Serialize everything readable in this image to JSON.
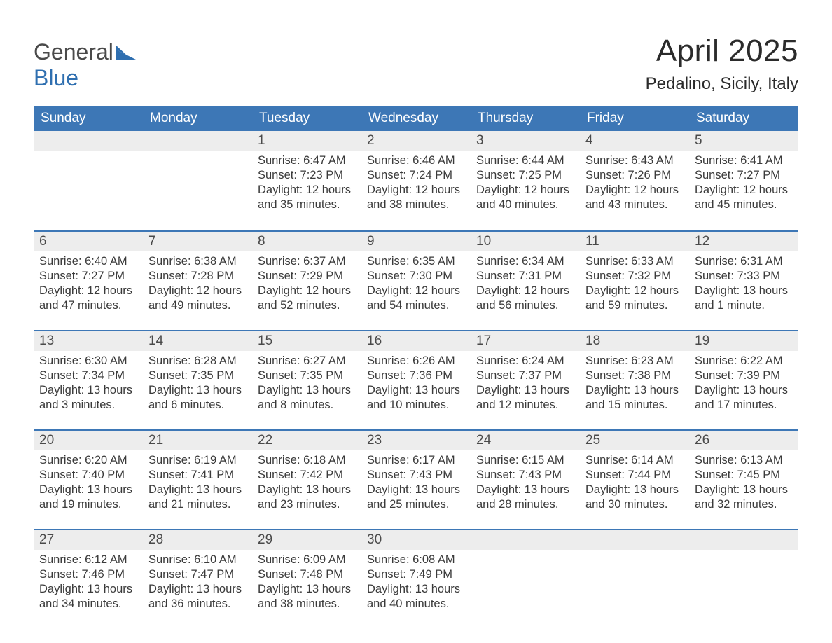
{
  "brand": {
    "part1": "General",
    "part2": "Blue"
  },
  "title": "April 2025",
  "location": "Pedalino, Sicily, Italy",
  "colors": {
    "header_bg": "#3d77b6",
    "header_text": "#ffffff",
    "daynum_bg": "#ededed",
    "week_divider": "#3d77b6",
    "body_text": "#3a3a3a",
    "brand_gray": "#4a4a4a",
    "brand_blue": "#2f6fb0",
    "page_bg": "#ffffff"
  },
  "typography": {
    "title_fontsize": 44,
    "location_fontsize": 24,
    "weekday_fontsize": 19,
    "daynum_fontsize": 19,
    "body_fontsize": 16.5,
    "font_family": "Arial"
  },
  "weekdays": [
    "Sunday",
    "Monday",
    "Tuesday",
    "Wednesday",
    "Thursday",
    "Friday",
    "Saturday"
  ],
  "weeks": [
    [
      null,
      null,
      {
        "n": "1",
        "sunrise": "Sunrise: 6:47 AM",
        "sunset": "Sunset: 7:23 PM",
        "daylight": "Daylight: 12 hours and 35 minutes."
      },
      {
        "n": "2",
        "sunrise": "Sunrise: 6:46 AM",
        "sunset": "Sunset: 7:24 PM",
        "daylight": "Daylight: 12 hours and 38 minutes."
      },
      {
        "n": "3",
        "sunrise": "Sunrise: 6:44 AM",
        "sunset": "Sunset: 7:25 PM",
        "daylight": "Daylight: 12 hours and 40 minutes."
      },
      {
        "n": "4",
        "sunrise": "Sunrise: 6:43 AM",
        "sunset": "Sunset: 7:26 PM",
        "daylight": "Daylight: 12 hours and 43 minutes."
      },
      {
        "n": "5",
        "sunrise": "Sunrise: 6:41 AM",
        "sunset": "Sunset: 7:27 PM",
        "daylight": "Daylight: 12 hours and 45 minutes."
      }
    ],
    [
      {
        "n": "6",
        "sunrise": "Sunrise: 6:40 AM",
        "sunset": "Sunset: 7:27 PM",
        "daylight": "Daylight: 12 hours and 47 minutes."
      },
      {
        "n": "7",
        "sunrise": "Sunrise: 6:38 AM",
        "sunset": "Sunset: 7:28 PM",
        "daylight": "Daylight: 12 hours and 49 minutes."
      },
      {
        "n": "8",
        "sunrise": "Sunrise: 6:37 AM",
        "sunset": "Sunset: 7:29 PM",
        "daylight": "Daylight: 12 hours and 52 minutes."
      },
      {
        "n": "9",
        "sunrise": "Sunrise: 6:35 AM",
        "sunset": "Sunset: 7:30 PM",
        "daylight": "Daylight: 12 hours and 54 minutes."
      },
      {
        "n": "10",
        "sunrise": "Sunrise: 6:34 AM",
        "sunset": "Sunset: 7:31 PM",
        "daylight": "Daylight: 12 hours and 56 minutes."
      },
      {
        "n": "11",
        "sunrise": "Sunrise: 6:33 AM",
        "sunset": "Sunset: 7:32 PM",
        "daylight": "Daylight: 12 hours and 59 minutes."
      },
      {
        "n": "12",
        "sunrise": "Sunrise: 6:31 AM",
        "sunset": "Sunset: 7:33 PM",
        "daylight": "Daylight: 13 hours and 1 minute."
      }
    ],
    [
      {
        "n": "13",
        "sunrise": "Sunrise: 6:30 AM",
        "sunset": "Sunset: 7:34 PM",
        "daylight": "Daylight: 13 hours and 3 minutes."
      },
      {
        "n": "14",
        "sunrise": "Sunrise: 6:28 AM",
        "sunset": "Sunset: 7:35 PM",
        "daylight": "Daylight: 13 hours and 6 minutes."
      },
      {
        "n": "15",
        "sunrise": "Sunrise: 6:27 AM",
        "sunset": "Sunset: 7:35 PM",
        "daylight": "Daylight: 13 hours and 8 minutes."
      },
      {
        "n": "16",
        "sunrise": "Sunrise: 6:26 AM",
        "sunset": "Sunset: 7:36 PM",
        "daylight": "Daylight: 13 hours and 10 minutes."
      },
      {
        "n": "17",
        "sunrise": "Sunrise: 6:24 AM",
        "sunset": "Sunset: 7:37 PM",
        "daylight": "Daylight: 13 hours and 12 minutes."
      },
      {
        "n": "18",
        "sunrise": "Sunrise: 6:23 AM",
        "sunset": "Sunset: 7:38 PM",
        "daylight": "Daylight: 13 hours and 15 minutes."
      },
      {
        "n": "19",
        "sunrise": "Sunrise: 6:22 AM",
        "sunset": "Sunset: 7:39 PM",
        "daylight": "Daylight: 13 hours and 17 minutes."
      }
    ],
    [
      {
        "n": "20",
        "sunrise": "Sunrise: 6:20 AM",
        "sunset": "Sunset: 7:40 PM",
        "daylight": "Daylight: 13 hours and 19 minutes."
      },
      {
        "n": "21",
        "sunrise": "Sunrise: 6:19 AM",
        "sunset": "Sunset: 7:41 PM",
        "daylight": "Daylight: 13 hours and 21 minutes."
      },
      {
        "n": "22",
        "sunrise": "Sunrise: 6:18 AM",
        "sunset": "Sunset: 7:42 PM",
        "daylight": "Daylight: 13 hours and 23 minutes."
      },
      {
        "n": "23",
        "sunrise": "Sunrise: 6:17 AM",
        "sunset": "Sunset: 7:43 PM",
        "daylight": "Daylight: 13 hours and 25 minutes."
      },
      {
        "n": "24",
        "sunrise": "Sunrise: 6:15 AM",
        "sunset": "Sunset: 7:43 PM",
        "daylight": "Daylight: 13 hours and 28 minutes."
      },
      {
        "n": "25",
        "sunrise": "Sunrise: 6:14 AM",
        "sunset": "Sunset: 7:44 PM",
        "daylight": "Daylight: 13 hours and 30 minutes."
      },
      {
        "n": "26",
        "sunrise": "Sunrise: 6:13 AM",
        "sunset": "Sunset: 7:45 PM",
        "daylight": "Daylight: 13 hours and 32 minutes."
      }
    ],
    [
      {
        "n": "27",
        "sunrise": "Sunrise: 6:12 AM",
        "sunset": "Sunset: 7:46 PM",
        "daylight": "Daylight: 13 hours and 34 minutes."
      },
      {
        "n": "28",
        "sunrise": "Sunrise: 6:10 AM",
        "sunset": "Sunset: 7:47 PM",
        "daylight": "Daylight: 13 hours and 36 minutes."
      },
      {
        "n": "29",
        "sunrise": "Sunrise: 6:09 AM",
        "sunset": "Sunset: 7:48 PM",
        "daylight": "Daylight: 13 hours and 38 minutes."
      },
      {
        "n": "30",
        "sunrise": "Sunrise: 6:08 AM",
        "sunset": "Sunset: 7:49 PM",
        "daylight": "Daylight: 13 hours and 40 minutes."
      },
      null,
      null,
      null
    ]
  ]
}
